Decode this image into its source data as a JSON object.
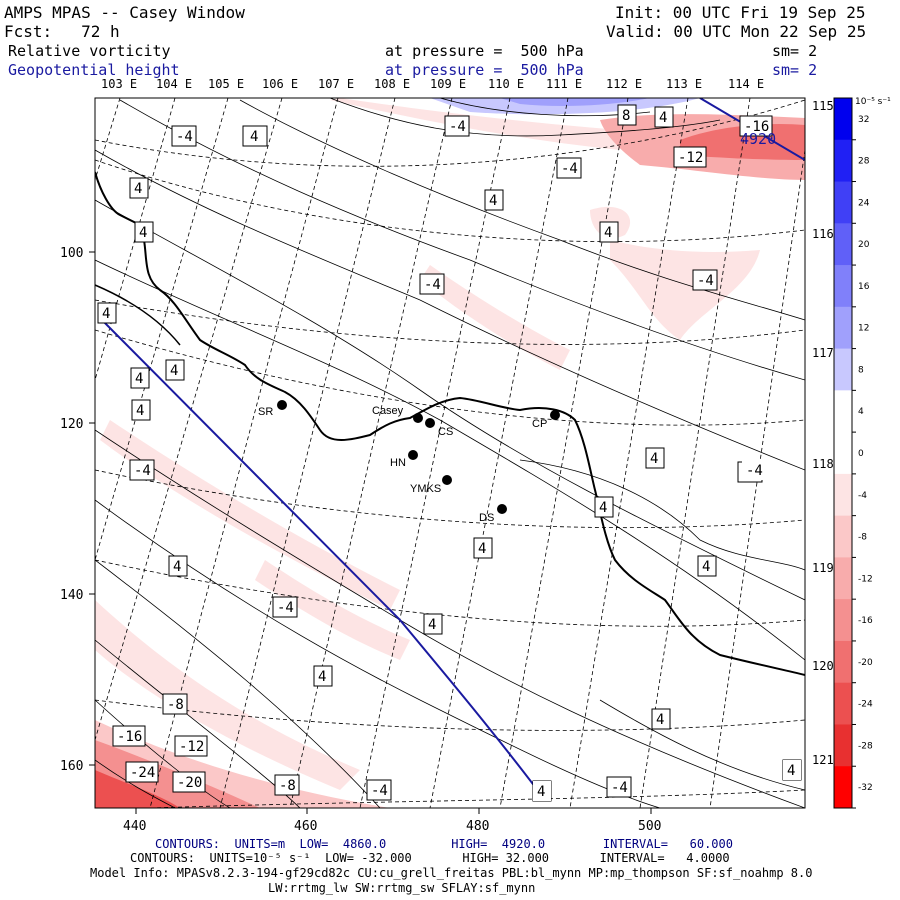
{
  "header": {
    "title": "AMPS MPAS -- Casey Window",
    "forecast": "Fcst:   72 h",
    "init": "Init: 00 UTC Fri 19 Sep 25",
    "valid": "Valid: 00 UTC Mon 22 Sep 25",
    "field1": {
      "name": "Relative vorticity",
      "level": "at pressure =  500 hPa",
      "smooth": "sm= 2"
    },
    "field2": {
      "name": "Geopotential height",
      "level": "at pressure =  500 hPa",
      "smooth": "sm= 2"
    }
  },
  "map": {
    "lon_top_labels": [
      "103 E",
      "104 E",
      "105 E",
      "106 E",
      "107 E",
      "108 E",
      "109 E",
      "110 E",
      "111 E",
      "112 E",
      "113 E",
      "114 E"
    ],
    "lon_right_labels": [
      "115 E",
      "116 E",
      "117 E",
      "118 E",
      "119 E",
      "120 E",
      "121 E"
    ],
    "x_ticks": [
      "440",
      "460",
      "480",
      "500"
    ],
    "y_ticks": [
      "100",
      "120",
      "140",
      "160"
    ],
    "stations": [
      {
        "name": "SR"
      },
      {
        "name": "Casey"
      },
      {
        "name": "CS"
      },
      {
        "name": "HN"
      },
      {
        "name": "YMKS"
      },
      {
        "name": "DS"
      },
      {
        "name": "CP"
      }
    ],
    "height_contour_label": "4920",
    "contour_labels": [
      "-4",
      "4",
      "-4",
      "4",
      "8",
      "4",
      "-16",
      "-12",
      "4",
      "-4",
      "4",
      "4",
      "-4",
      "-4",
      "4",
      "4",
      "4",
      "-4",
      "4",
      "-4",
      "4",
      "4",
      "4",
      "4",
      "-4",
      "4",
      "4",
      "-4",
      "4",
      "4",
      "4",
      "4",
      "-8",
      "-16",
      "-12",
      "-24",
      "-20",
      "-8",
      "-4",
      "4",
      "-4",
      "4"
    ]
  },
  "colorbar": {
    "unit": "10⁻⁵ s⁻¹",
    "ticks": [
      "32",
      "28",
      "24",
      "20",
      "16",
      "12",
      "8",
      "4",
      "0",
      "-4",
      "-8",
      "-12",
      "-16",
      "-20",
      "-24",
      "-28",
      "-32"
    ],
    "colors": [
      "#0000ee",
      "#2020f4",
      "#4040f6",
      "#6060f8",
      "#8080fa",
      "#a0a0fc",
      "#c8c8fe",
      "#ffffff",
      "#ffffff",
      "#fde4e4",
      "#fbc8c8",
      "#f8acac",
      "#f49090",
      "#f07070",
      "#ec5050",
      "#e83030",
      "#ff0000"
    ]
  },
  "footer": {
    "line1": "CONTOURS:  UNITS=m  LOW=  4860.0         HIGH=  4920.0        INTERVAL=   60.000",
    "line2": "CONTOURS:  UNITS=10⁻⁵ s⁻¹  LOW= -32.000       HIGH= 32.000       INTERVAL=   4.0000",
    "line3": "Model Info: MPASv8.2.3-194-gf29cd82c CU:cu_grell_freitas PBL:bl_mynn MP:mp_thompson SF:sf_noahmp 8.0",
    "line4": "LW:rrtmg_lw SW:rrtmg_sw SFLAY:sf_mynn"
  }
}
